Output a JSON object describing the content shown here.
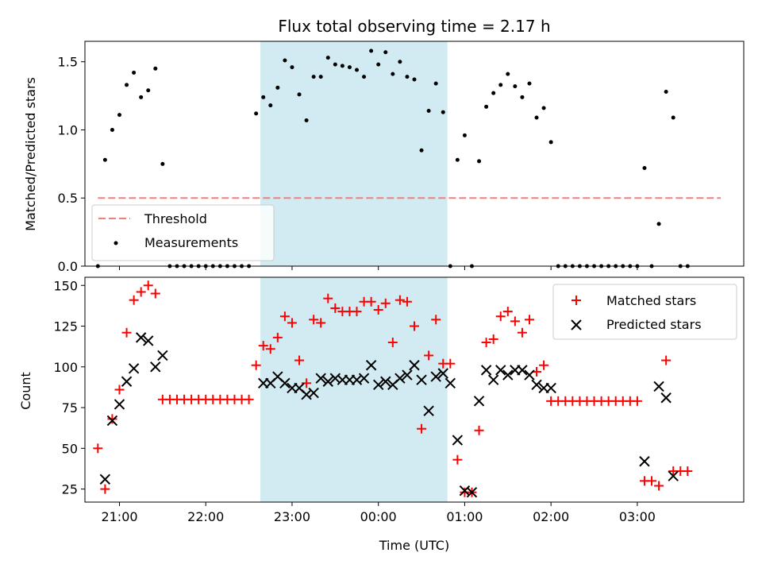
{
  "colors": {
    "matched": "#ff0000",
    "predicted": "#000000",
    "threshold": "#f08080",
    "measurement": "#000000",
    "span": "#add8e6"
  },
  "chart_data": [
    {
      "type": "scatter",
      "title": "Flux total observing time = 2.17 h",
      "xlabel": "",
      "ylabel": "Matched/Predicted stars",
      "ylim": [
        0,
        1.65
      ],
      "xlim": [
        "20:36",
        "04:14"
      ],
      "yticks": [
        "0.0",
        "0.5",
        "1.0",
        "1.5"
      ],
      "ytick_values": [
        0,
        0.5,
        1.0,
        1.5
      ],
      "xtick_values": [
        "21:00",
        "22:00",
        "23:00",
        "00:00",
        "01:00",
        "02:00",
        "03:00"
      ],
      "highlight_span": [
        "22:38",
        "00:48"
      ],
      "legend": {
        "position": "lower-left",
        "entries": [
          "Threshold",
          "Measurements"
        ]
      },
      "threshold": {
        "name": "Threshold",
        "y": 0.5,
        "x_start": "20:45",
        "x_end": "03:58"
      },
      "series": [
        {
          "name": "Measurements",
          "x": [
            "20:45",
            "20:50",
            "20:55",
            "21:00",
            "21:05",
            "21:10",
            "21:15",
            "21:20",
            "21:25",
            "21:30",
            "21:35",
            "21:40",
            "21:45",
            "21:50",
            "21:55",
            "22:00",
            "22:05",
            "22:10",
            "22:15",
            "22:20",
            "22:25",
            "22:30",
            "22:35",
            "22:40",
            "22:45",
            "22:50",
            "22:55",
            "23:00",
            "23:05",
            "23:10",
            "23:15",
            "23:20",
            "23:25",
            "23:30",
            "23:35",
            "23:40",
            "23:45",
            "23:50",
            "23:55",
            "00:00",
            "00:05",
            "00:10",
            "00:15",
            "00:20",
            "00:25",
            "00:30",
            "00:35",
            "00:40",
            "00:45",
            "00:50",
            "00:55",
            "01:00",
            "01:05",
            "01:10",
            "01:15",
            "01:20",
            "01:25",
            "01:30",
            "01:35",
            "01:40",
            "01:45",
            "01:50",
            "01:55",
            "02:00",
            "02:05",
            "02:10",
            "02:15",
            "02:20",
            "02:25",
            "02:30",
            "02:35",
            "02:40",
            "02:45",
            "02:50",
            "02:55",
            "03:00",
            "03:05",
            "03:10",
            "03:15",
            "03:20",
            "03:25",
            "03:30",
            "03:35"
          ],
          "y": [
            0,
            0.78,
            1.0,
            1.11,
            1.33,
            1.42,
            1.24,
            1.29,
            1.45,
            0.75,
            0,
            0,
            0,
            0,
            0,
            0,
            0,
            0,
            0,
            0,
            0,
            0,
            1.12,
            1.24,
            1.18,
            1.31,
            1.51,
            1.46,
            1.26,
            1.07,
            1.39,
            1.39,
            1.53,
            1.48,
            1.47,
            1.46,
            1.44,
            1.39,
            1.58,
            1.48,
            1.57,
            1.41,
            1.5,
            1.39,
            1.37,
            0.85,
            1.14,
            1.34,
            1.13,
            0,
            0.78,
            0.96,
            0,
            0.77,
            1.17,
            1.27,
            1.33,
            1.41,
            1.32,
            1.24,
            1.34,
            1.09,
            1.16,
            0.91,
            0,
            0,
            0,
            0,
            0,
            0,
            0,
            0,
            0,
            0,
            0,
            0,
            0.72,
            0,
            0.31,
            1.28,
            1.09,
            0,
            0
          ]
        }
      ]
    },
    {
      "type": "scatter",
      "title": "",
      "xlabel": "Time (UTC)",
      "ylabel": "Count",
      "ylim": [
        17,
        155
      ],
      "xlim": [
        "20:36",
        "04:14"
      ],
      "yticks": [
        "25",
        "50",
        "75",
        "100",
        "125",
        "150"
      ],
      "ytick_values": [
        25,
        50,
        75,
        100,
        125,
        150
      ],
      "xticks": [
        "21:00",
        "22:00",
        "23:00",
        "00:00",
        "01:00",
        "02:00",
        "03:00"
      ],
      "xtick_values": [
        "21:00",
        "22:00",
        "23:00",
        "00:00",
        "01:00",
        "02:00",
        "03:00"
      ],
      "highlight_span": [
        "22:38",
        "00:48"
      ],
      "legend": {
        "position": "top-right",
        "entries": [
          "Matched stars",
          "Predicted stars"
        ]
      },
      "series": [
        {
          "name": "Matched stars",
          "marker": "plus",
          "x": [
            "20:45",
            "20:50",
            "20:55",
            "21:00",
            "21:05",
            "21:10",
            "21:15",
            "21:20",
            "21:25",
            "21:30",
            "21:35",
            "21:40",
            "21:45",
            "21:50",
            "21:55",
            "22:00",
            "22:05",
            "22:10",
            "22:15",
            "22:20",
            "22:25",
            "22:30",
            "22:35",
            "22:40",
            "22:45",
            "22:50",
            "22:55",
            "23:00",
            "23:05",
            "23:10",
            "23:15",
            "23:20",
            "23:25",
            "23:30",
            "23:35",
            "23:40",
            "23:45",
            "23:50",
            "23:55",
            "00:00",
            "00:05",
            "00:10",
            "00:15",
            "00:20",
            "00:25",
            "00:30",
            "00:35",
            "00:40",
            "00:45",
            "00:50",
            "00:55",
            "01:00",
            "01:05",
            "01:10",
            "01:15",
            "01:20",
            "01:25",
            "01:30",
            "01:35",
            "01:40",
            "01:45",
            "01:50",
            "01:55",
            "02:00",
            "02:05",
            "02:10",
            "02:15",
            "02:20",
            "02:25",
            "02:30",
            "02:35",
            "02:40",
            "02:45",
            "02:50",
            "02:55",
            "03:00",
            "03:05",
            "03:10",
            "03:15",
            "03:20",
            "03:25",
            "03:30",
            "03:35"
          ],
          "y": [
            50,
            25,
            68,
            86,
            121,
            141,
            146,
            150,
            145,
            80,
            80,
            80,
            80,
            80,
            80,
            80,
            80,
            80,
            80,
            80,
            80,
            80,
            101,
            113,
            111,
            118,
            131,
            127,
            104,
            90,
            129,
            127,
            142,
            136,
            134,
            134,
            134,
            140,
            140,
            135,
            139,
            115,
            141,
            140,
            125,
            62,
            107,
            129,
            102,
            102,
            43,
            23,
            23,
            61,
            115,
            117,
            131,
            134,
            128,
            121,
            129,
            97,
            101,
            79,
            79,
            79,
            79,
            79,
            79,
            79,
            79,
            79,
            79,
            79,
            79,
            79,
            30,
            30,
            27,
            104,
            36,
            36,
            36
          ]
        },
        {
          "name": "Predicted stars",
          "marker": "cross",
          "x": [
            "20:50",
            "20:55",
            "21:00",
            "21:05",
            "21:10",
            "21:15",
            "21:20",
            "21:25",
            "21:30",
            "22:40",
            "22:45",
            "22:50",
            "22:55",
            "23:00",
            "23:05",
            "23:10",
            "23:15",
            "23:20",
            "23:25",
            "23:30",
            "23:35",
            "23:40",
            "23:45",
            "23:50",
            "23:55",
            "00:00",
            "00:05",
            "00:10",
            "00:15",
            "00:20",
            "00:25",
            "00:30",
            "00:35",
            "00:40",
            "00:45",
            "00:50",
            "00:55",
            "01:00",
            "01:05",
            "01:10",
            "01:15",
            "01:20",
            "01:25",
            "01:30",
            "01:35",
            "01:40",
            "01:45",
            "01:50",
            "01:55",
            "02:00",
            "03:05",
            "03:15",
            "03:20",
            "03:25"
          ],
          "y": [
            31,
            67,
            77,
            91,
            99,
            118,
            116,
            100,
            107,
            90,
            90,
            94,
            90,
            87,
            87,
            83,
            84,
            93,
            91,
            93,
            92,
            92,
            92,
            93,
            101,
            89,
            91,
            89,
            93,
            95,
            101,
            92,
            73,
            94,
            96,
            90,
            55,
            24,
            23,
            79,
            98,
            92,
            98,
            95,
            98,
            98,
            95,
            89,
            87,
            87,
            42,
            88,
            81,
            33
          ]
        }
      ]
    }
  ]
}
